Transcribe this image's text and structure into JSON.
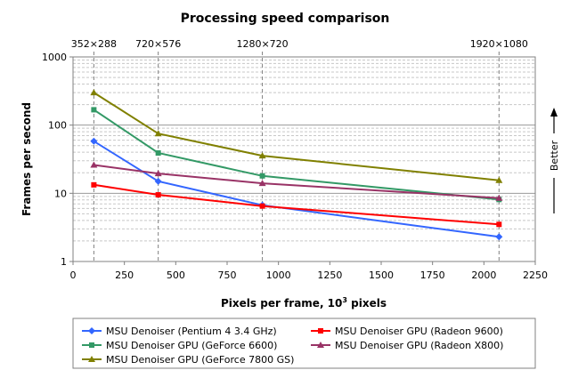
{
  "chart_data": {
    "type": "line",
    "title": "Processing speed comparison",
    "xlabel": "Pixels per frame, 10",
    "xlabel_sup": "3",
    "xlabel_suffix": " pixels",
    "ylabel": "Frames per second",
    "annotation": "Better",
    "xlim": [
      0,
      2250
    ],
    "x_ticks": [
      0,
      250,
      500,
      750,
      1000,
      1250,
      1500,
      1750,
      2000,
      2250
    ],
    "ylim": [
      1,
      1000
    ],
    "y_scale": "log",
    "y_ticks": [
      1,
      10,
      100,
      1000
    ],
    "grid": true,
    "resolutions": [
      {
        "label": "352×288",
        "x": 101.376
      },
      {
        "label": "720×576",
        "x": 414.72
      },
      {
        "label": "1280×720",
        "x": 921.6
      },
      {
        "label": "1920×1080",
        "x": 2073.6
      }
    ],
    "x": [
      101.376,
      414.72,
      921.6,
      2073.6
    ],
    "legend_position": "bottom",
    "series": [
      {
        "name": "MSU Denoiser (Pentium 4 3.4 GHz)",
        "color": "#3366ff",
        "marker": "diamond",
        "values": [
          58,
          15,
          6.7,
          2.3
        ]
      },
      {
        "name": "MSU Denoiser GPU (Radeon 9600)",
        "color": "#ff0000",
        "marker": "square",
        "values": [
          13.3,
          9.5,
          6.5,
          3.5
        ]
      },
      {
        "name": "MSU Denoiser GPU (GeForce 6600)",
        "color": "#339966",
        "marker": "square",
        "values": [
          168,
          39,
          18,
          8.1
        ]
      },
      {
        "name": "MSU Denoiser GPU (Radeon X800)",
        "color": "#993366",
        "marker": "triangle",
        "values": [
          26,
          19.5,
          14,
          8.5
        ]
      },
      {
        "name": "MSU Denoiser GPU (GeForce 7800 GS)",
        "color": "#808000",
        "marker": "triangle",
        "values": [
          300,
          75,
          35.5,
          15.5
        ]
      }
    ]
  }
}
